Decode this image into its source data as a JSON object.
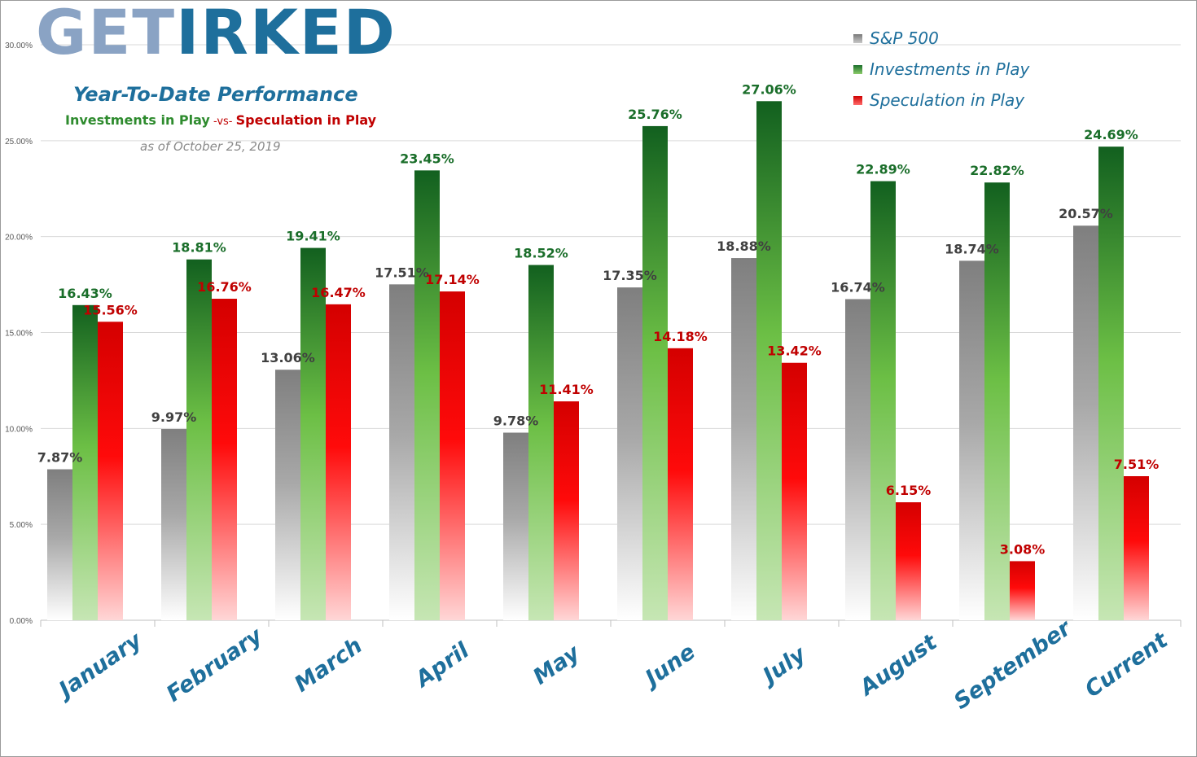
{
  "header": {
    "logo_get": "GET",
    "logo_irked": "IRKED",
    "subtitle": "Year-To-Date Performance",
    "versus_left": "Investments in Play",
    "versus_mid": " -vs- ",
    "versus_right": "Speculation in Play",
    "as_of": "as of October 25, 2019"
  },
  "legend": {
    "items": [
      {
        "label": "S&P 500"
      },
      {
        "label": "Investments in Play"
      },
      {
        "label": "Speculation in Play"
      }
    ]
  },
  "colors": {
    "sp_top": "#7f7f7f",
    "sp_bottom": "#ffffff",
    "sp_label": "#404040",
    "inv_top": "#12601f",
    "inv_mid": "#6cbf45",
    "inv_bottom": "#c6e6b4",
    "inv_label": "#1a6e2a",
    "spec_top": "#d40000",
    "spec_mid": "#ff0a0a",
    "spec_bottom": "#ffd6d6",
    "spec_label": "#c00000",
    "category_label": "#1e6f9c",
    "grid": "#d9d9d9"
  },
  "chart_data": {
    "type": "bar",
    "title": "Year-To-Date Performance",
    "categories": [
      "January",
      "February",
      "March",
      "April",
      "May",
      "June",
      "July",
      "August",
      "September",
      "Current"
    ],
    "series": [
      {
        "name": "S&P 500",
        "values": [
          7.87,
          9.97,
          13.06,
          17.51,
          9.78,
          17.35,
          18.88,
          16.74,
          18.74,
          20.57
        ]
      },
      {
        "name": "Investments in Play",
        "values": [
          16.43,
          18.81,
          19.41,
          23.45,
          18.52,
          25.76,
          27.06,
          22.89,
          22.82,
          24.69
        ]
      },
      {
        "name": "Speculation in Play",
        "values": [
          15.56,
          16.76,
          16.47,
          17.14,
          11.41,
          14.18,
          13.42,
          6.15,
          3.08,
          7.51
        ]
      }
    ],
    "value_labels": [
      [
        "7.87%",
        "9.97%",
        "13.06%",
        "17.51%",
        "9.78%",
        "17.35%",
        "18.88%",
        "16.74%",
        "18.74%",
        "20.57%"
      ],
      [
        "16.43%",
        "18.81%",
        "19.41%",
        "23.45%",
        "18.52%",
        "25.76%",
        "27.06%",
        "22.89%",
        "22.82%",
        "24.69%"
      ],
      [
        "15.56%",
        "16.76%",
        "16.47%",
        "17.14%",
        "11.41%",
        "14.18%",
        "13.42%",
        "6.15%",
        "3.08%",
        "7.51%"
      ]
    ],
    "y_ticks": [
      0,
      5,
      10,
      15,
      20,
      25,
      30
    ],
    "y_tick_labels": [
      "0.00%",
      "5.00%",
      "10.00%",
      "15.00%",
      "20.00%",
      "25.00%",
      "30.00%"
    ],
    "ylim": [
      0,
      30
    ],
    "xlabel": "",
    "ylabel": "",
    "grid": true,
    "legend_position": "top-right"
  }
}
